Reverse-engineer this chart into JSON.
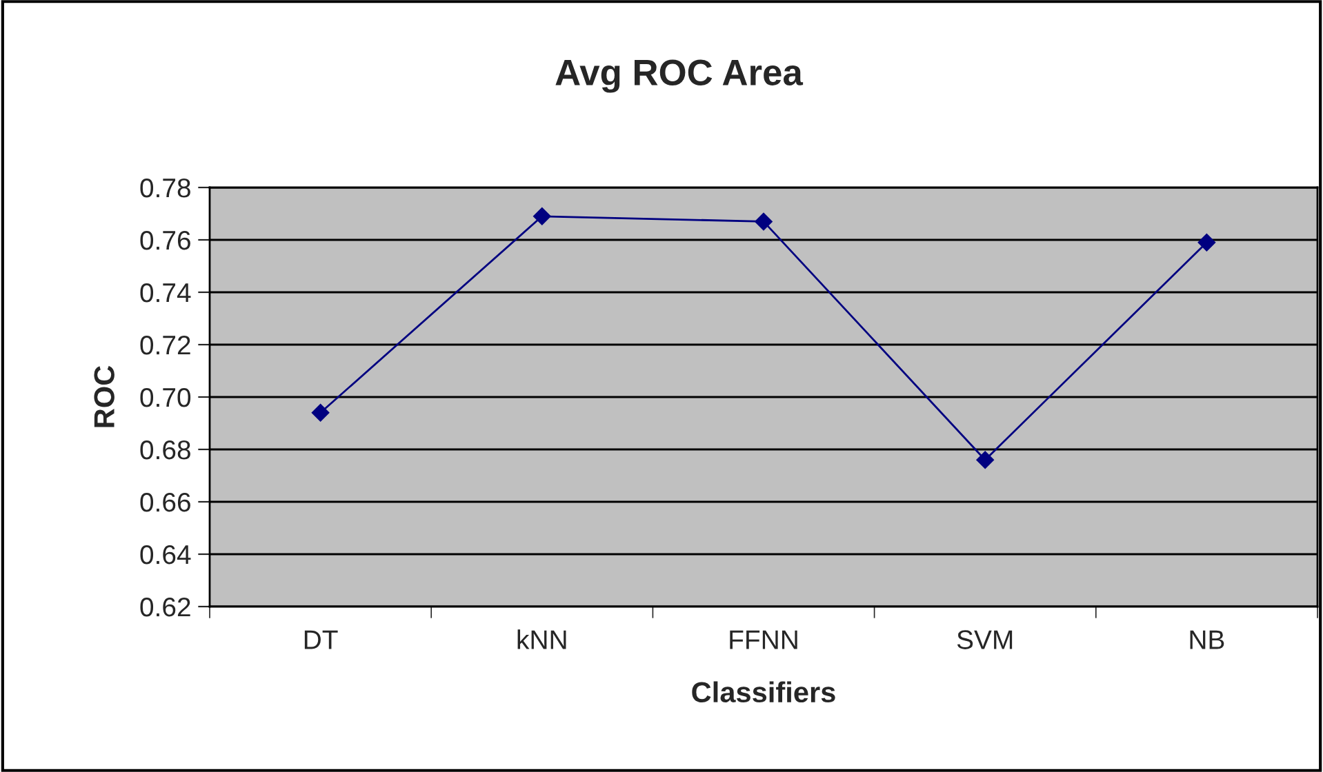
{
  "chart_data": {
    "type": "line",
    "title": "Avg ROC Area",
    "xlabel": "Classifiers",
    "ylabel": "ROC",
    "categories": [
      "DT",
      "kNN",
      "FFNN",
      "SVM",
      "NB"
    ],
    "series": [
      {
        "color": "#000080",
        "values": [
          0.694,
          0.769,
          0.767,
          0.676,
          0.759
        ]
      }
    ],
    "ylim": [
      0.62,
      0.78
    ],
    "yticks": [
      {
        "value": 0.62,
        "label": "0.62"
      },
      {
        "value": 0.64,
        "label": "0.64"
      },
      {
        "value": 0.66,
        "label": "0.66"
      },
      {
        "value": 0.68,
        "label": "0.68"
      },
      {
        "value": 0.7,
        "label": "0.70"
      },
      {
        "value": 0.72,
        "label": "0.72"
      },
      {
        "value": 0.74,
        "label": "0.74"
      },
      {
        "value": 0.76,
        "label": "0.76"
      },
      {
        "value": 0.78,
        "label": "0.78"
      }
    ],
    "grid": "y",
    "marker": "diamond",
    "line_style": "solid"
  }
}
